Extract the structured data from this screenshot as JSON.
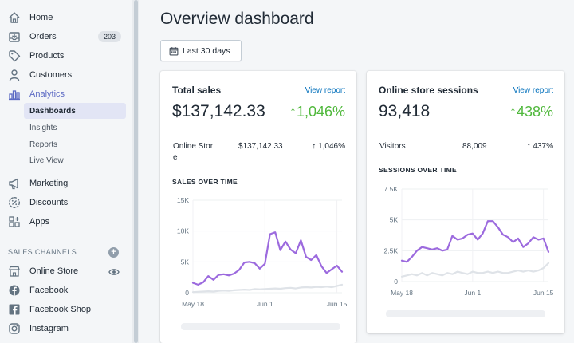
{
  "sidebar": {
    "items": [
      {
        "label": "Home",
        "icon": "home-icon"
      },
      {
        "label": "Orders",
        "icon": "orders-icon",
        "badge": "203"
      },
      {
        "label": "Products",
        "icon": "tag-icon"
      },
      {
        "label": "Customers",
        "icon": "person-icon"
      },
      {
        "label": "Analytics",
        "icon": "bar-chart-icon",
        "active": true
      }
    ],
    "analytics_sub": [
      "Dashboards",
      "Insights",
      "Reports",
      "Live View"
    ],
    "items2": [
      {
        "label": "Marketing",
        "icon": "megaphone-icon"
      },
      {
        "label": "Discounts",
        "icon": "discount-icon"
      },
      {
        "label": "Apps",
        "icon": "apps-icon"
      }
    ],
    "channels_heading": "SALES CHANNELS",
    "channels": [
      {
        "label": "Online Store",
        "icon": "store-icon"
      },
      {
        "label": "Facebook",
        "icon": "facebook-icon"
      },
      {
        "label": "Facebook Shop",
        "icon": "facebook-shop-icon"
      },
      {
        "label": "Instagram",
        "icon": "instagram-icon"
      }
    ]
  },
  "main": {
    "title": "Overview dashboard",
    "date_button": "Last 30 days"
  },
  "cards": [
    {
      "title": "Total sales",
      "link": "View report",
      "value": "$137,142.33",
      "change": "↑1,046%",
      "row": {
        "label_line1": "Online Stor",
        "label_line2": "e",
        "value": "$137,142.33",
        "change": "↑ 1,046%"
      },
      "chart_heading": "SALES OVER TIME"
    },
    {
      "title": "Online store sessions",
      "link": "View report",
      "value": "93,418",
      "change": "↑438%",
      "row": {
        "label_line1": "Visitors",
        "value": "88,009",
        "change": "↑ 437%"
      },
      "chart_heading": "SESSIONS OVER TIME"
    }
  ],
  "colors": {
    "accent": "#5c6ac4",
    "positive": "#50b83c",
    "link": "#006fbb",
    "series_current": "#9c6ade",
    "series_previous": "#dfe3e8"
  },
  "chart_data": [
    {
      "type": "line",
      "title": "SALES OVER TIME",
      "x": [
        "May 18",
        "May 19",
        "May 20",
        "May 21",
        "May 22",
        "May 23",
        "May 24",
        "May 25",
        "May 26",
        "May 27",
        "May 28",
        "May 29",
        "May 30",
        "May 31",
        "Jun 1",
        "Jun 2",
        "Jun 3",
        "Jun 4",
        "Jun 5",
        "Jun 6",
        "Jun 7",
        "Jun 8",
        "Jun 9",
        "Jun 10",
        "Jun 11",
        "Jun 12",
        "Jun 13",
        "Jun 14",
        "Jun 15",
        "Jun 16"
      ],
      "xticks": [
        "May 18",
        "Jun 1",
        "Jun 15"
      ],
      "yticks": [
        "0",
        "5K",
        "10K",
        "15K"
      ],
      "ylim": [
        0,
        15000
      ],
      "series": [
        {
          "values": [
            1600,
            1300,
            1700,
            2700,
            2100,
            2900,
            3000,
            2800,
            3100,
            3700,
            4900,
            5000,
            4800,
            3900,
            4700,
            9500,
            9800,
            6900,
            8300,
            7000,
            6400,
            8500,
            5800,
            5300,
            6100,
            4300,
            3200,
            3800,
            4400,
            3400
          ]
        },
        {
          "values": [
            100,
            150,
            200,
            250,
            200,
            300,
            350,
            300,
            400,
            450,
            500,
            450,
            600,
            550,
            600,
            650,
            700,
            650,
            750,
            800,
            700,
            850,
            900,
            850,
            950,
            900,
            1000,
            900,
            1100,
            1300
          ]
        }
      ]
    },
    {
      "type": "line",
      "title": "SESSIONS OVER TIME",
      "x": [
        "May 18",
        "May 19",
        "May 20",
        "May 21",
        "May 22",
        "May 23",
        "May 24",
        "May 25",
        "May 26",
        "May 27",
        "May 28",
        "May 29",
        "May 30",
        "May 31",
        "Jun 1",
        "Jun 2",
        "Jun 3",
        "Jun 4",
        "Jun 5",
        "Jun 6",
        "Jun 7",
        "Jun 8",
        "Jun 9",
        "Jun 10",
        "Jun 11",
        "Jun 12",
        "Jun 13",
        "Jun 14",
        "Jun 15",
        "Jun 16"
      ],
      "xticks": [
        "May 18",
        "Jun 1",
        "Jun 15"
      ],
      "yticks": [
        "0",
        "2.5K",
        "5K",
        "7.5K"
      ],
      "ylim": [
        0,
        7500
      ],
      "series": [
        {
          "values": [
            1700,
            1600,
            2000,
            2500,
            2800,
            2700,
            2600,
            2700,
            2500,
            2600,
            3700,
            3400,
            3500,
            3800,
            3900,
            3400,
            3900,
            4900,
            4900,
            4400,
            3800,
            3600,
            3200,
            3500,
            2800,
            3100,
            3600,
            3400,
            3500,
            2400
          ]
        },
        {
          "values": [
            400,
            500,
            600,
            500,
            700,
            500,
            700,
            600,
            500,
            700,
            600,
            800,
            700,
            600,
            800,
            700,
            700,
            800,
            700,
            800,
            700,
            700,
            800,
            900,
            800,
            900,
            800,
            900,
            1100,
            1500
          ]
        }
      ]
    }
  ]
}
